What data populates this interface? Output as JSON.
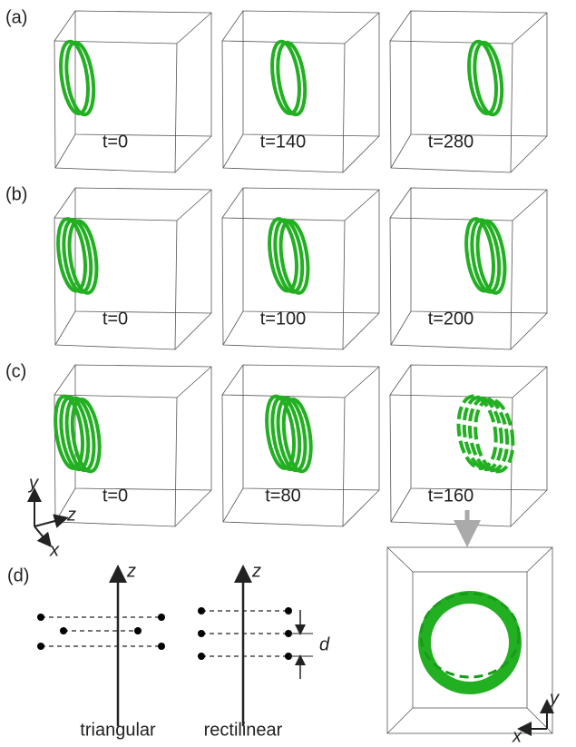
{
  "panels": [
    {
      "label": "(a)",
      "frames": [
        "t=0",
        "t=140",
        "t=280"
      ]
    },
    {
      "label": "(b)",
      "frames": [
        "t=0",
        "t=100",
        "t=200"
      ]
    },
    {
      "label": "(c)",
      "frames": [
        "t=0",
        "t=80",
        "t=160"
      ]
    }
  ],
  "axes": {
    "y": "y",
    "z": "z",
    "x": "x"
  },
  "panel_d": {
    "label": "(d)",
    "triangular": {
      "axis": "z",
      "caption": "triangular"
    },
    "rectilinear": {
      "axis": "z",
      "caption": "rectilinear",
      "spacing": "d"
    }
  },
  "bottom_view": {
    "y": "y",
    "x": "x"
  }
}
